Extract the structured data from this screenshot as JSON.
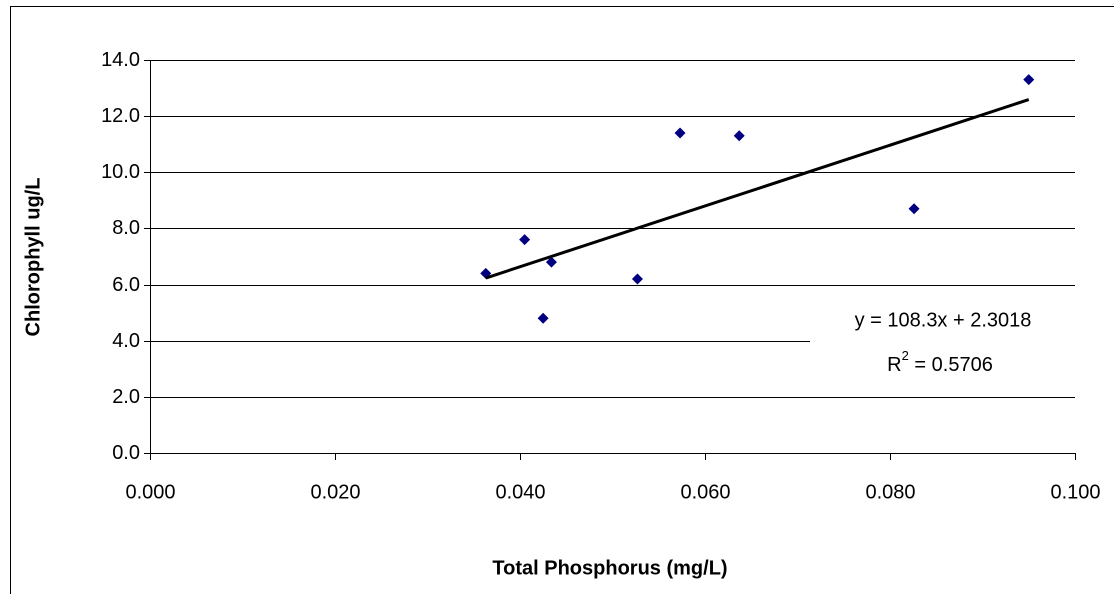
{
  "chart_data": {
    "type": "scatter",
    "x_label": "Total Phosphorus (mg/L)",
    "y_label": "Chlorophyll ug/L",
    "series": [
      {
        "color": "#000080",
        "x": [
          0.0363,
          0.0405,
          0.0425,
          0.0434,
          0.0527,
          0.0573,
          0.0637,
          0.0826,
          0.095
        ],
        "values": [
          6.4,
          7.6,
          4.8,
          6.8,
          6.2,
          11.4,
          11.3,
          8.7,
          13.3
        ]
      }
    ],
    "trendline": {
      "slope": 108.3,
      "intercept": 2.3018,
      "r2": 0.5706,
      "color": "#000000",
      "label": "y = 108.3x + 2.3018",
      "r2_label": [
        "R",
        "2",
        " = 0.5706"
      ]
    },
    "xlim": [
      0,
      0.1
    ],
    "ylim": [
      0,
      14
    ],
    "xticks": [
      {
        "value": 0,
        "label": "0.000"
      },
      {
        "value": 0.02,
        "label": "0.020"
      },
      {
        "value": 0.04,
        "label": "0.040"
      },
      {
        "value": 0.06,
        "label": "0.060"
      },
      {
        "value": 0.08,
        "label": "0.080"
      },
      {
        "value": 0.1,
        "label": "0.100"
      }
    ],
    "yticks": [
      {
        "value": 0,
        "label": "0.0"
      },
      {
        "value": 2,
        "label": "2.0"
      },
      {
        "value": 4,
        "label": "4.0"
      },
      {
        "value": 6,
        "label": "6.0"
      },
      {
        "value": 8,
        "label": "8.0"
      },
      {
        "value": 10,
        "label": "10.0"
      },
      {
        "value": 12,
        "label": "12.0"
      },
      {
        "value": 14,
        "label": "14.0"
      }
    ],
    "grid": true
  }
}
